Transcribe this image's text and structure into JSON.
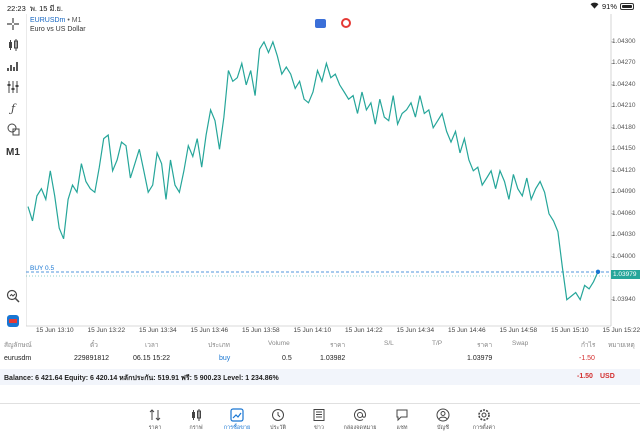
{
  "status_bar": {
    "time": "22:23",
    "date": "พ. 15 มี.ย.",
    "battery": "91%"
  },
  "chart": {
    "symbol": "EURUSDm",
    "timeframe": "M1",
    "symbol_timeframe": "• M1",
    "description": "Euro vs US Dollar",
    "buy_line_label": "BUY 0.5",
    "current_price": "1.03979",
    "line_color": "#26a69a",
    "price_labels": [
      "1.04300",
      "1.04270",
      "1.04240",
      "1.04210",
      "1.04180",
      "1.04150",
      "1.04120",
      "1.04090",
      "1.04060",
      "1.04030",
      "1.04000",
      "1.03970",
      "1.03940"
    ],
    "time_labels": [
      "15 Jun 13:10",
      "15 Jun 13:22",
      "15 Jun 13:34",
      "15 Jun 13:46",
      "15 Jun 13:58",
      "15 Jun 14:10",
      "15 Jun 14:22",
      "15 Jun 14:34",
      "15 Jun 14:46",
      "15 Jun 14:58",
      "15 Jun 15:10",
      "15 Jun 15:22"
    ]
  },
  "chart_data": {
    "type": "line",
    "series": [
      {
        "values": [
          1.0407,
          1.0405,
          1.04085,
          1.04095,
          1.0408,
          1.0412,
          1.04085,
          1.0404,
          1.04025,
          1.0408,
          1.041,
          1.0409,
          1.0413,
          1.04105,
          1.04095,
          1.0409,
          1.04125,
          1.04165,
          1.0417,
          1.0412,
          1.04135,
          1.0416,
          1.04155,
          1.0411,
          1.0413,
          1.0415,
          1.0412,
          1.0409,
          1.041,
          1.04145,
          1.0413,
          1.0408,
          1.04135,
          1.041,
          1.0409,
          1.0412,
          1.04155,
          1.0414,
          1.04165,
          1.04125,
          1.0417,
          1.04205,
          1.0419,
          1.0415,
          1.04195,
          1.0426,
          1.04245,
          1.0425,
          1.0427,
          1.0424,
          1.0426,
          1.04225,
          1.0429,
          1.043,
          1.04285,
          1.043,
          1.0428,
          1.04255,
          1.04265,
          1.04255,
          1.04235,
          1.04245,
          1.0422,
          1.04215,
          1.0423,
          1.0426,
          1.04245,
          1.0427,
          1.0425,
          1.04255,
          1.0424,
          1.0423,
          1.0422,
          1.04225,
          1.042,
          1.0423,
          1.04205,
          1.04215,
          1.04185,
          1.0422,
          1.04195,
          1.0419,
          1.04225,
          1.04185,
          1.042,
          1.04205,
          1.04215,
          1.04195,
          1.04225,
          1.042,
          1.04205,
          1.0418,
          1.0419,
          1.042,
          1.04175,
          1.0416,
          1.04175,
          1.04145,
          1.04165,
          1.04135,
          1.0412,
          1.04125,
          1.041,
          1.0411,
          1.0412,
          1.04095,
          1.0412,
          1.04105,
          1.0408,
          1.04115,
          1.04095,
          1.04085,
          1.0411,
          1.0408,
          1.04095,
          1.04105,
          1.0409,
          1.0406,
          1.0405,
          1.04035,
          1.03985,
          1.0394,
          1.03945,
          1.0395,
          1.0394,
          1.0396,
          1.03955,
          1.03965,
          1.03979
        ]
      }
    ],
    "ylim": [
      1.0392,
      1.04325
    ]
  },
  "positions_table": {
    "headers": [
      "สัญลักษณ์",
      "ตั๋ว",
      "เวลา",
      "ประเภท",
      "Volume",
      "ราคา",
      "S/L",
      "T/P",
      "ราคา",
      "Swap",
      "กำไร",
      "หมายเหตุ"
    ],
    "row": {
      "symbol": "eurusdm",
      "ticket": "229891812",
      "time": "06.15 15:22",
      "type": "buy",
      "volume": "0.5",
      "open_price": "1.03982",
      "sl": "",
      "tp": "",
      "price": "1.03979",
      "swap": "",
      "profit": "-1.50",
      "comment": ""
    }
  },
  "balance": {
    "text": "Balance: 6 421.64 Equity: 6 420.14 หลักประกัน: 519.91 ฟรี: 5 900.23 Level: 1 234.86%",
    "profit": "-1.50",
    "currency": "USD"
  },
  "nav": [
    {
      "label": "ราคา",
      "icon": "quotes-icon"
    },
    {
      "label": "กราฟ",
      "icon": "chart-icon"
    },
    {
      "label": "การซื้อขาย",
      "icon": "trade-icon"
    },
    {
      "label": "ประวัติ",
      "icon": "history-icon"
    },
    {
      "label": "ข่าว",
      "icon": "news-icon"
    },
    {
      "label": "กล่องจดหมาย",
      "icon": "mailbox-icon"
    },
    {
      "label": "แชท",
      "icon": "chat-icon"
    },
    {
      "label": "บัญชี",
      "icon": "account-icon"
    },
    {
      "label": "การตั้งค่า",
      "icon": "settings-icon"
    }
  ]
}
